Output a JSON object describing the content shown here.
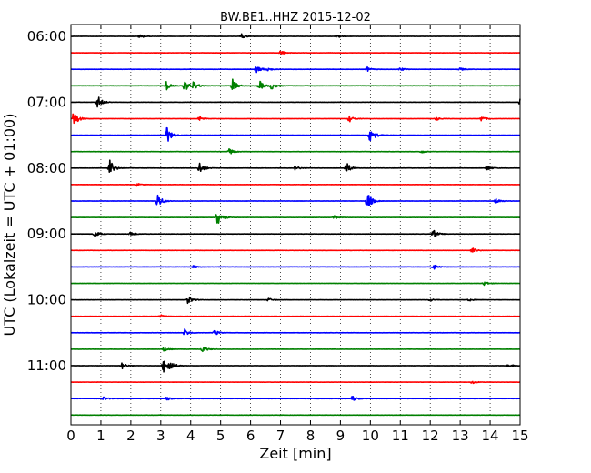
{
  "chart_data": {
    "type": "line",
    "title": "BW.BE1..HHZ 2015-12-02",
    "xlabel": "Zeit  [min]",
    "ylabel": "UTC (Lokalzeit = UTC + 01:00)",
    "xlim": [
      0,
      15
    ],
    "x_ticks": [
      "0",
      "1",
      "2",
      "3",
      "4",
      "5",
      "6",
      "7",
      "8",
      "9",
      "10",
      "11",
      "12",
      "13",
      "14",
      "15"
    ],
    "y_ticks": [
      "06:00",
      "07:00",
      "08:00",
      "09:00",
      "10:00",
      "11:00"
    ],
    "grid": "vertical dotted at each minute",
    "trace_interval_minutes": 15,
    "color_cycle": [
      "#000000",
      "#ff0000",
      "#0000ff",
      "#008000"
    ],
    "traces": [
      {
        "start": "06:00",
        "events": [
          [
            2.3,
            0.25
          ],
          [
            5.7,
            0.35
          ],
          [
            8.9,
            0.2
          ]
        ]
      },
      {
        "start": "06:15",
        "events": [
          [
            7.0,
            0.3
          ]
        ]
      },
      {
        "start": "06:30",
        "events": [
          [
            6.2,
            0.5
          ],
          [
            6.5,
            0.4
          ],
          [
            9.9,
            0.3
          ],
          [
            11.0,
            0.25
          ],
          [
            13.0,
            0.2
          ]
        ]
      },
      {
        "start": "06:45",
        "events": [
          [
            3.2,
            0.7
          ],
          [
            3.8,
            0.8
          ],
          [
            4.1,
            0.6
          ],
          [
            5.4,
            0.9
          ],
          [
            6.3,
            0.7
          ],
          [
            6.7,
            0.5
          ]
        ]
      },
      {
        "start": "07:00",
        "events": [
          [
            0.9,
            0.9
          ],
          [
            15.0,
            0.5
          ]
        ]
      },
      {
        "start": "07:15",
        "events": [
          [
            0.1,
            1.2
          ],
          [
            4.3,
            0.35
          ],
          [
            9.3,
            0.45
          ],
          [
            12.2,
            0.25
          ],
          [
            13.7,
            0.4
          ]
        ]
      },
      {
        "start": "07:30",
        "events": [
          [
            3.2,
            1.3
          ],
          [
            10.0,
            1.4
          ]
        ]
      },
      {
        "start": "07:45",
        "events": [
          [
            5.3,
            0.45
          ],
          [
            11.7,
            0.2
          ]
        ]
      },
      {
        "start": "08:00",
        "events": [
          [
            1.3,
            1.2
          ],
          [
            4.3,
            0.9
          ],
          [
            7.5,
            0.3
          ],
          [
            9.2,
            0.8
          ],
          [
            13.9,
            0.35
          ]
        ]
      },
      {
        "start": "08:15",
        "events": [
          [
            2.2,
            0.2
          ]
        ]
      },
      {
        "start": "08:30",
        "events": [
          [
            2.9,
            1.0
          ],
          [
            9.9,
            1.3
          ],
          [
            14.2,
            0.4
          ]
        ]
      },
      {
        "start": "08:45",
        "events": [
          [
            4.9,
            1.4
          ],
          [
            8.8,
            0.25
          ]
        ]
      },
      {
        "start": "09:00",
        "events": [
          [
            0.8,
            0.45
          ],
          [
            2.0,
            0.3
          ],
          [
            12.1,
            0.6
          ]
        ]
      },
      {
        "start": "09:15",
        "events": [
          [
            13.4,
            0.4
          ]
        ]
      },
      {
        "start": "09:30",
        "events": [
          [
            4.1,
            0.2
          ],
          [
            12.1,
            0.5
          ]
        ]
      },
      {
        "start": "09:45",
        "events": [
          [
            13.8,
            0.3
          ]
        ]
      },
      {
        "start": "10:00",
        "events": [
          [
            3.9,
            0.7
          ],
          [
            6.6,
            0.25
          ],
          [
            12.0,
            0.2
          ],
          [
            13.3,
            0.2
          ]
        ]
      },
      {
        "start": "10:15",
        "events": [
          [
            3.0,
            0.2
          ]
        ]
      },
      {
        "start": "10:30",
        "events": [
          [
            3.8,
            0.5
          ],
          [
            4.8,
            0.35
          ]
        ]
      },
      {
        "start": "10:45",
        "events": [
          [
            3.1,
            0.3
          ],
          [
            4.4,
            0.45
          ]
        ]
      },
      {
        "start": "11:00",
        "events": [
          [
            1.7,
            0.45
          ],
          [
            3.1,
            0.9
          ],
          [
            3.3,
            0.8
          ],
          [
            14.6,
            0.35
          ]
        ]
      },
      {
        "start": "11:15",
        "events": [
          [
            13.4,
            0.2
          ]
        ]
      },
      {
        "start": "11:30",
        "events": [
          [
            1.1,
            0.25
          ],
          [
            3.2,
            0.25
          ],
          [
            9.4,
            0.4
          ]
        ]
      },
      {
        "start": "11:45",
        "events": []
      }
    ]
  }
}
